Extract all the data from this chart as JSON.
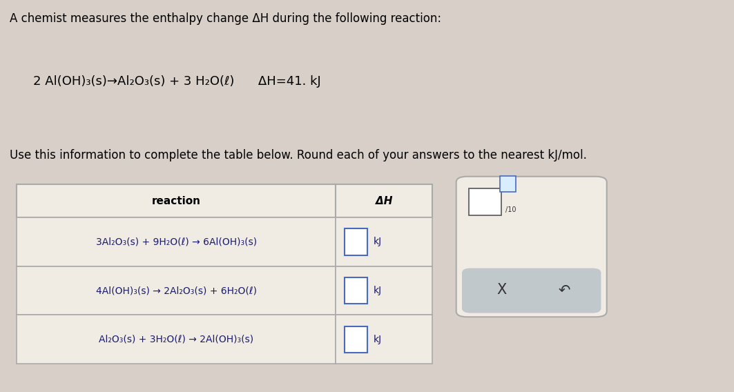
{
  "background_color": "#d8d0c8",
  "title_text": "A chemist measures the enthalpy change ΔH during the following reaction:",
  "reaction_line": "2 Al(OH)₃(s)→Al₂O₃(s) + 3 H₂O(ℓ)      ΔH=41. kJ",
  "instruction_text": "Use this information to complete the table below. Round each of your answers to the nearest kJ/mol.",
  "table_header_reaction": "reaction",
  "table_header_dH": "ΔH",
  "row1_reaction": "3Al₂O₃(s) + 9H₂O(ℓ) → 6Al(OH)₃(s)",
  "row2_reaction": "4Al(OH)₃(s) → 2Al₂O₃(s) + 6H₂O(ℓ)",
  "row3_reaction": "Al₂O₃(s) + 3H₂O(ℓ) → 2Al(OH)₃(s)",
  "kJ_label": "kJ",
  "table_bg": "#f0ece4",
  "table_border_color": "#aaaaaa",
  "text_color": "#1a1a6e",
  "input_box_color": "#ffffff",
  "input_box_border": "#4a6abf",
  "side_box_bg": "#f0ece4",
  "side_box_border": "#aaaaaa",
  "side_bottom_bg": "#c0c8cc",
  "x_label": "X",
  "undo_label": "↶",
  "font_size_title": 12,
  "font_size_reaction_line": 13,
  "font_size_instruction": 12,
  "font_size_table_header": 11,
  "font_size_table_row": 10,
  "font_size_side": 15
}
